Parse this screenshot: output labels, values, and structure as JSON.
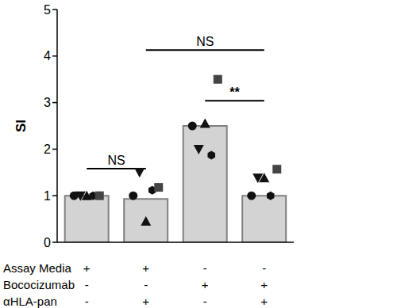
{
  "chart_data": {
    "type": "bar",
    "y_label": "SI",
    "categories": [
      null,
      null,
      null,
      null
    ],
    "values": [
      1.0,
      0.93,
      2.5,
      1.0
    ],
    "color": "#d3d3d3",
    "ylim": [
      0,
      5
    ],
    "yticks": [
      0,
      1,
      2,
      3,
      4,
      5
    ],
    "grid": false,
    "points": [
      {
        "marker": "circle",
        "color": "#111111",
        "values": [
          1.0,
          1.0,
          2.5,
          1.0
        ]
      },
      {
        "marker": "triangle-down",
        "color": "#111111",
        "values": [
          1.0,
          1.5,
          2.0,
          1.38
        ]
      },
      {
        "marker": "triangle",
        "color": "#111111",
        "values": [
          1.0,
          0.45,
          2.55,
          1.38
        ]
      },
      {
        "marker": "hexagon",
        "color": "#111111",
        "values": [
          1.0,
          1.12,
          1.87,
          1.0
        ]
      },
      {
        "marker": "square",
        "color": "#444444",
        "values": [
          1.0,
          1.18,
          3.5,
          1.57
        ]
      }
    ],
    "annotations": [
      {
        "text": "NS",
        "from": 0,
        "to": 1,
        "y": 1.58
      },
      {
        "text": "**",
        "from": 2,
        "to": 3,
        "y": 3.04
      },
      {
        "text": "NS",
        "from": 1,
        "to": 3,
        "y": 4.13
      }
    ],
    "conditions": [
      {
        "label": "Assay Media",
        "values": [
          "+",
          "+",
          "-",
          "-"
        ]
      },
      {
        "label": "Bococizumab",
        "values": [
          "-",
          "-",
          "+",
          "+"
        ]
      },
      {
        "label": "αHLA-pan",
        "values": [
          "-",
          "+",
          "-",
          "+"
        ]
      }
    ]
  }
}
